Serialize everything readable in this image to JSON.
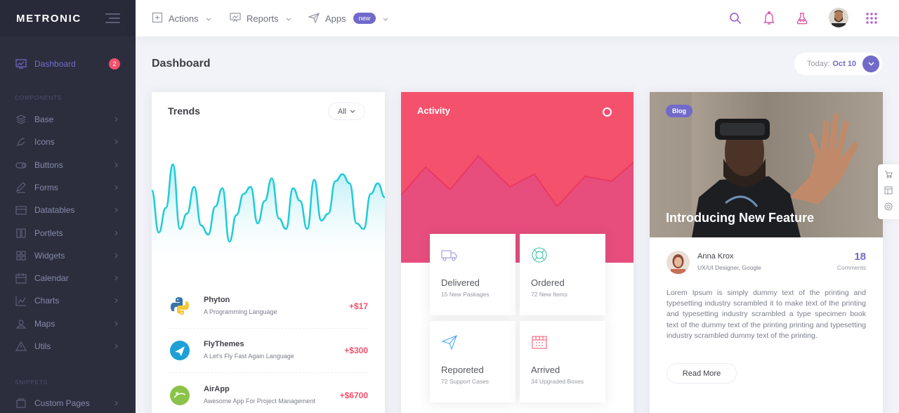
{
  "brand": {
    "logo": "METRONIC"
  },
  "sidebar": {
    "dashboard": {
      "label": "Dashboard",
      "badge": "2"
    },
    "section_components": "Components",
    "items": [
      {
        "label": "Base",
        "icon": "layers-icon"
      },
      {
        "label": "Icons",
        "icon": "feather-icon"
      },
      {
        "label": "Buttons",
        "icon": "toggle-icon"
      },
      {
        "label": "Forms",
        "icon": "form-icon"
      },
      {
        "label": "Datatables",
        "icon": "table-icon"
      },
      {
        "label": "Portlets",
        "icon": "portlet-icon"
      },
      {
        "label": "Widgets",
        "icon": "widgets-icon"
      },
      {
        "label": "Calendar",
        "icon": "calendar-icon"
      },
      {
        "label": "Charts",
        "icon": "chart-icon"
      },
      {
        "label": "Maps",
        "icon": "map-pin-icon"
      },
      {
        "label": "Utils",
        "icon": "warning-icon"
      }
    ],
    "section_snippets": "Snippets",
    "snippets": [
      {
        "label": "Custom Pages",
        "icon": "pages-icon"
      }
    ]
  },
  "topbar": {
    "actions": "Actions",
    "reports": "Reports",
    "apps": "Apps",
    "apps_badge": "new"
  },
  "page": {
    "title": "Dashboard",
    "date_label": "Today:",
    "date_value": "Oct 10"
  },
  "trends": {
    "title": "Trends",
    "filter": "All",
    "items": [
      {
        "name": "Phyton",
        "desc": "A Programming Language",
        "value": "+$17"
      },
      {
        "name": "FlyThemes",
        "desc": "A Let's Fly Fast Again Language",
        "value": "+$300"
      },
      {
        "name": "AirApp",
        "desc": "Awesome App For Project Management",
        "value": "+$6700"
      }
    ]
  },
  "activity": {
    "title": "Activity",
    "tiles": [
      {
        "name": "Delivered",
        "desc": "15 New Paskages",
        "icon": "truck-icon"
      },
      {
        "name": "Ordered",
        "desc": "72 New Items",
        "icon": "lifebuoy-icon"
      },
      {
        "name": "Reporeted",
        "desc": "72 Support Cases",
        "icon": "paper-plane-icon"
      },
      {
        "name": "Arrived",
        "desc": "34 Upgraded Boxes",
        "icon": "box-icon"
      }
    ]
  },
  "blog": {
    "badge": "Blog",
    "title": "Introducing New Feature",
    "author": "Anna Krox",
    "role": "UX/UI Designer, Google",
    "comments_count": "18",
    "comments_label": "Comments",
    "text": "Lorem Ipsum is simply dummy text of the printing and typesetting industry scrambled it to make text of the printing and typesetting industry scrambled a type specimen book text of the dummy text of the printing printing and typesetting industry scrambled dummy text of the printing.",
    "read_more": "Read More"
  },
  "colors": {
    "accent": "#716aca",
    "danger": "#f4516c",
    "sidebar": "#2c2e3e",
    "trend_line": "#1fcbd8"
  }
}
